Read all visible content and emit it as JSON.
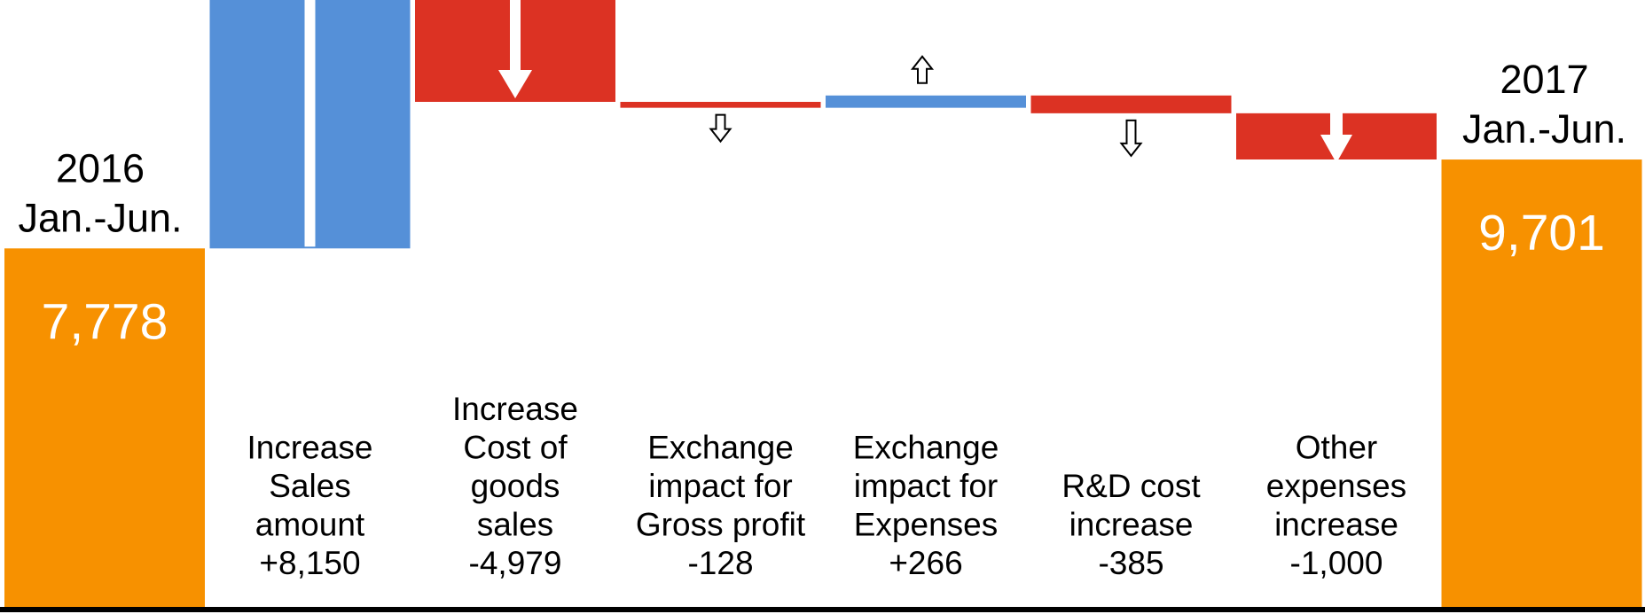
{
  "chart_data": {
    "type": "waterfall",
    "title": "",
    "xlabel": "",
    "ylabel": "",
    "ylim": [
      0,
      13000
    ],
    "colors": {
      "total": "#f79100",
      "increase": "#5590d8",
      "decrease": "#dc3223",
      "arrow_fill": "#ffffff",
      "arrow_stroke": "#000000",
      "baseline": "#000000"
    },
    "bars": [
      {
        "kind": "total",
        "value": 7778,
        "value_label": "7,778",
        "label_lines": [
          "2016",
          "Jan.-Jun."
        ]
      },
      {
        "kind": "delta",
        "value": 8150,
        "label_lines": [
          "Increase",
          "Sales",
          "amount",
          "+8,150"
        ]
      },
      {
        "kind": "delta",
        "value": -4979,
        "label_lines": [
          "Increase",
          "Cost of",
          "goods",
          "sales",
          "-4,979"
        ]
      },
      {
        "kind": "delta",
        "value": -128,
        "label_lines": [
          "Exchange",
          "impact for",
          "Gross profit",
          "-128"
        ]
      },
      {
        "kind": "delta",
        "value": 266,
        "label_lines": [
          "Exchange",
          "impact for",
          "Expenses",
          "+266"
        ]
      },
      {
        "kind": "delta",
        "value": -385,
        "label_lines": [
          "R&D cost",
          "increase",
          "-385"
        ]
      },
      {
        "kind": "delta",
        "value": -1000,
        "label_lines": [
          "Other",
          "expenses",
          "increase",
          "-1,000"
        ]
      },
      {
        "kind": "total",
        "value": 9701,
        "value_label": "9,701",
        "label_lines": [
          "2017",
          "Jan.-Jun."
        ]
      }
    ]
  }
}
